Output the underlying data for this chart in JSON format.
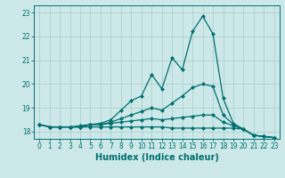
{
  "xlabel": "Humidex (Indice chaleur)",
  "xlim": [
    -0.5,
    23.5
  ],
  "ylim": [
    17.7,
    23.3
  ],
  "bg_color": "#cce8e8",
  "line_color": "#007070",
  "grid_color": "#aacccc",
  "series": [
    [
      18.3,
      18.2,
      18.2,
      18.2,
      18.25,
      18.3,
      18.35,
      18.5,
      18.9,
      19.3,
      19.5,
      20.4,
      19.8,
      21.1,
      20.6,
      22.2,
      22.85,
      22.1,
      19.4,
      18.35,
      18.1,
      17.85,
      17.8,
      17.75
    ],
    [
      18.3,
      18.2,
      18.2,
      18.2,
      18.2,
      18.3,
      18.3,
      18.4,
      18.55,
      18.7,
      18.85,
      19.0,
      18.9,
      19.2,
      19.5,
      19.85,
      20.0,
      19.9,
      18.7,
      18.3,
      18.1,
      17.85,
      17.8,
      17.75
    ],
    [
      18.3,
      18.2,
      18.2,
      18.2,
      18.2,
      18.3,
      18.3,
      18.35,
      18.4,
      18.45,
      18.5,
      18.55,
      18.5,
      18.55,
      18.6,
      18.65,
      18.7,
      18.7,
      18.4,
      18.25,
      18.1,
      17.85,
      17.8,
      17.75
    ],
    [
      18.3,
      18.2,
      18.2,
      18.2,
      18.2,
      18.2,
      18.2,
      18.2,
      18.2,
      18.2,
      18.2,
      18.2,
      18.2,
      18.15,
      18.15,
      18.15,
      18.15,
      18.15,
      18.15,
      18.15,
      18.1,
      17.85,
      17.8,
      17.75
    ]
  ],
  "marker": "D",
  "marker_size": 2.0,
  "line_width": 0.9,
  "tick_fontsize": 5.5,
  "label_fontsize": 7.0,
  "yticks": [
    18,
    19,
    20,
    21,
    22,
    23
  ]
}
